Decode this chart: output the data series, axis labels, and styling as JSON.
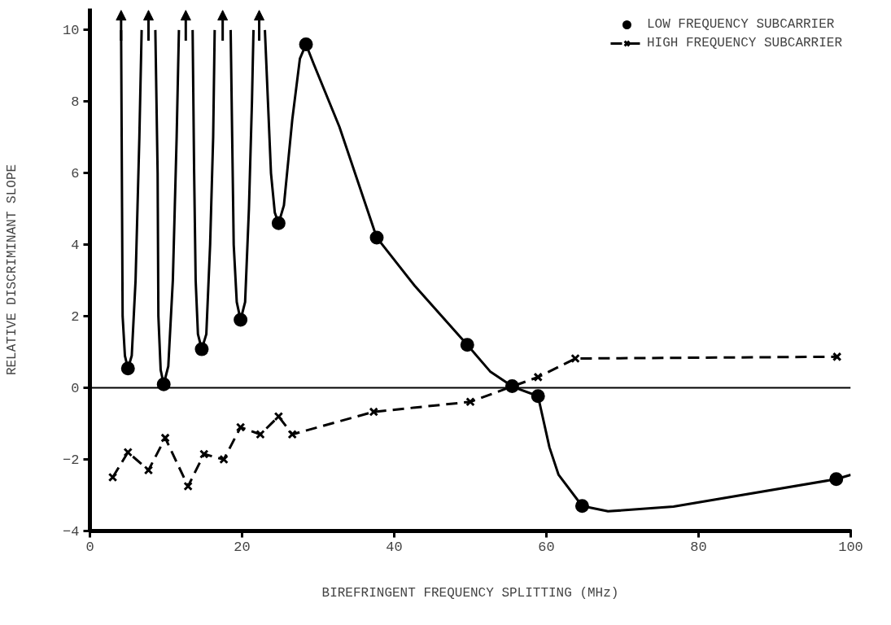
{
  "chart_data": {
    "type": "line",
    "xlabel": "BIREFRINGENT FREQUENCY SPLITTING (MHz)",
    "ylabel": "RELATIVE DISCRIMINANT SLOPE",
    "xlim": [
      0,
      100
    ],
    "ylim": [
      -4,
      10.6
    ],
    "xticks": [
      0,
      20,
      40,
      60,
      80,
      100
    ],
    "yticks": [
      -4,
      -2,
      0,
      2,
      4,
      6,
      8,
      10
    ],
    "grid": false,
    "legend": "top right",
    "ref_lines": [
      {
        "axis": "y",
        "value": 0,
        "color": "#000000"
      }
    ],
    "series": [
      {
        "color": "#000000",
        "marker": "none",
        "line_style": "solid",
        "x": [
          4.1,
          4.2,
          4.3,
          4.6,
          5.0,
          5.5,
          6.0,
          6.5,
          6.8,
          7.7,
          8.6,
          8.9,
          9.0,
          9.3,
          9.7,
          10.3,
          10.9,
          11.4,
          11.7,
          12.6,
          13.5,
          13.7,
          13.9,
          14.2,
          14.7,
          15.3,
          15.8,
          16.2,
          16.4,
          17.45,
          18.5,
          18.7,
          18.9,
          19.3,
          19.8,
          20.4,
          20.9,
          21.3,
          21.5,
          22.25,
          23.0,
          23.4,
          23.8,
          24.3,
          24.8,
          25.5,
          26.6,
          27.6,
          28.4,
          29.4,
          32.8,
          37.7,
          42.7,
          49.6,
          52.6,
          55.6,
          58.9,
          60.4,
          61.6,
          64.7,
          68.1,
          76.7,
          98.1,
          100
        ],
        "values": [
          10,
          6,
          2,
          0.9,
          0.54,
          0.9,
          3,
          7,
          10,
          null,
          10,
          6,
          2,
          0.5,
          0.1,
          0.6,
          3,
          7,
          10,
          null,
          10,
          6,
          3,
          1.5,
          1.08,
          1.5,
          4,
          7,
          10,
          null,
          10,
          7,
          4,
          2.4,
          1.9,
          2.4,
          5,
          8,
          10,
          null,
          10,
          8,
          6,
          4.9,
          4.6,
          5.1,
          7.5,
          9.2,
          9.6,
          9.06,
          7.29,
          4.2,
          2.85,
          1.2,
          0.46,
          0.03,
          -0.23,
          -1.66,
          -2.43,
          -3.3,
          -3.45,
          -3.32,
          -2.55,
          -2.43
        ]
      },
      {
        "type": "scatter",
        "name": "LOW FREQUENCY SUBCARRIER",
        "color": "#000000",
        "marker": "circle",
        "x": [
          5.0,
          9.7,
          14.7,
          19.8,
          24.8,
          28.4,
          37.7,
          49.6,
          55.5,
          58.9,
          64.7,
          98.1
        ],
        "values": [
          0.54,
          0.1,
          1.08,
          1.9,
          4.6,
          9.6,
          4.2,
          1.2,
          0.05,
          -0.23,
          -3.3,
          -2.55
        ]
      },
      {
        "name": "HIGH FREQUENCY SUBCARRIER",
        "color": "#000000",
        "marker": "cross",
        "line_style": "dashed",
        "x": [
          3.0,
          5.0,
          7.7,
          9.9,
          12.9,
          15.0,
          17.6,
          19.8,
          22.4,
          24.8,
          26.6,
          37.3,
          50.0,
          55.5,
          58.9,
          63.8,
          98.2
        ],
        "values": [
          -2.5,
          -1.8,
          -2.3,
          -1.4,
          -2.75,
          -1.85,
          -2.0,
          -1.1,
          -1.3,
          -0.8,
          -1.3,
          -0.67,
          -0.39,
          0.04,
          0.3,
          0.82,
          0.87
        ]
      }
    ]
  }
}
